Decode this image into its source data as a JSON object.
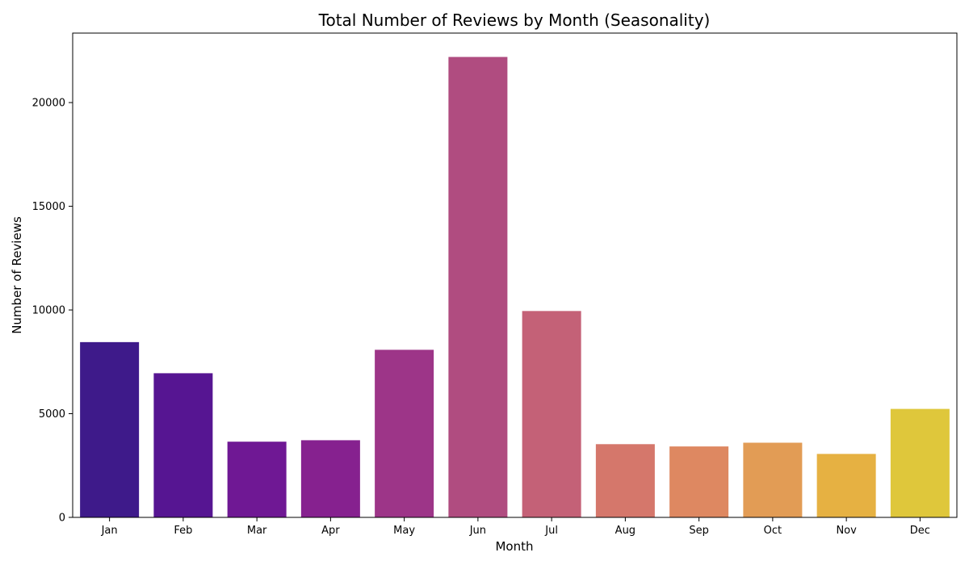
{
  "chart_data": {
    "type": "bar",
    "title": "Total Number of Reviews by Month (Seasonality)",
    "xlabel": "Month",
    "ylabel": "Number of Reviews",
    "categories": [
      "Jan",
      "Feb",
      "Mar",
      "Apr",
      "May",
      "Jun",
      "Jul",
      "Aug",
      "Sep",
      "Oct",
      "Nov",
      "Dec"
    ],
    "values": [
      8450,
      6950,
      3650,
      3720,
      8080,
      22200,
      9950,
      3530,
      3420,
      3600,
      3060,
      5230
    ],
    "colors": [
      "#3e1a8a",
      "#561592",
      "#6f1894",
      "#86218f",
      "#9d3588",
      "#b04c80",
      "#c46177",
      "#d5776b",
      "#de8861",
      "#e29c55",
      "#e6b142",
      "#dfc73b"
    ],
    "ylim": [
      0,
      23350
    ],
    "yticks": [
      0,
      5000,
      10000,
      15000,
      20000
    ],
    "ytick_labels": [
      "0",
      "5000",
      "10000",
      "15000",
      "20000"
    ],
    "grid": false,
    "legend": "none"
  }
}
